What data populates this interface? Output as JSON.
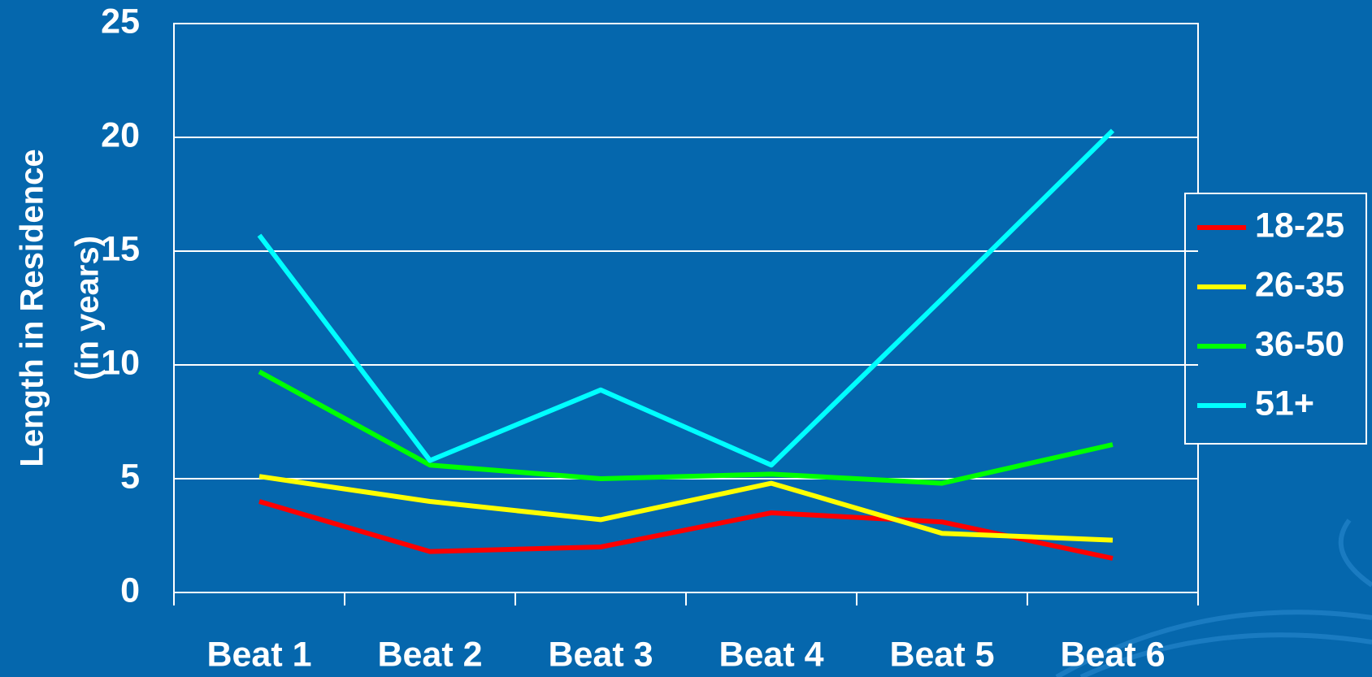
{
  "chart_data": {
    "type": "line",
    "y_label": [
      "Length in Residence",
      "(in years)"
    ],
    "categories": [
      "Beat 1",
      "Beat 2",
      "Beat 3",
      "Beat 4",
      "Beat 5",
      "Beat 6"
    ],
    "series": [
      {
        "name": "18-25",
        "color": "#ff0000",
        "values": [
          4.0,
          1.8,
          2.0,
          3.5,
          3.1,
          1.5
        ]
      },
      {
        "name": "26-35",
        "color": "#ffff00",
        "values": [
          5.1,
          4.0,
          3.2,
          4.8,
          2.6,
          2.3
        ]
      },
      {
        "name": "36-50",
        "color": "#00ff00",
        "values": [
          9.7,
          5.6,
          5.0,
          5.2,
          4.8,
          6.5
        ]
      },
      {
        "name": "51+",
        "color": "#00ffff",
        "values": [
          15.7,
          5.8,
          8.9,
          5.6,
          12.9,
          20.3
        ]
      }
    ],
    "ylim": [
      0,
      25
    ],
    "yticks": [
      0,
      5,
      10,
      15,
      20,
      25
    ],
    "grid": true,
    "legend": "right"
  }
}
